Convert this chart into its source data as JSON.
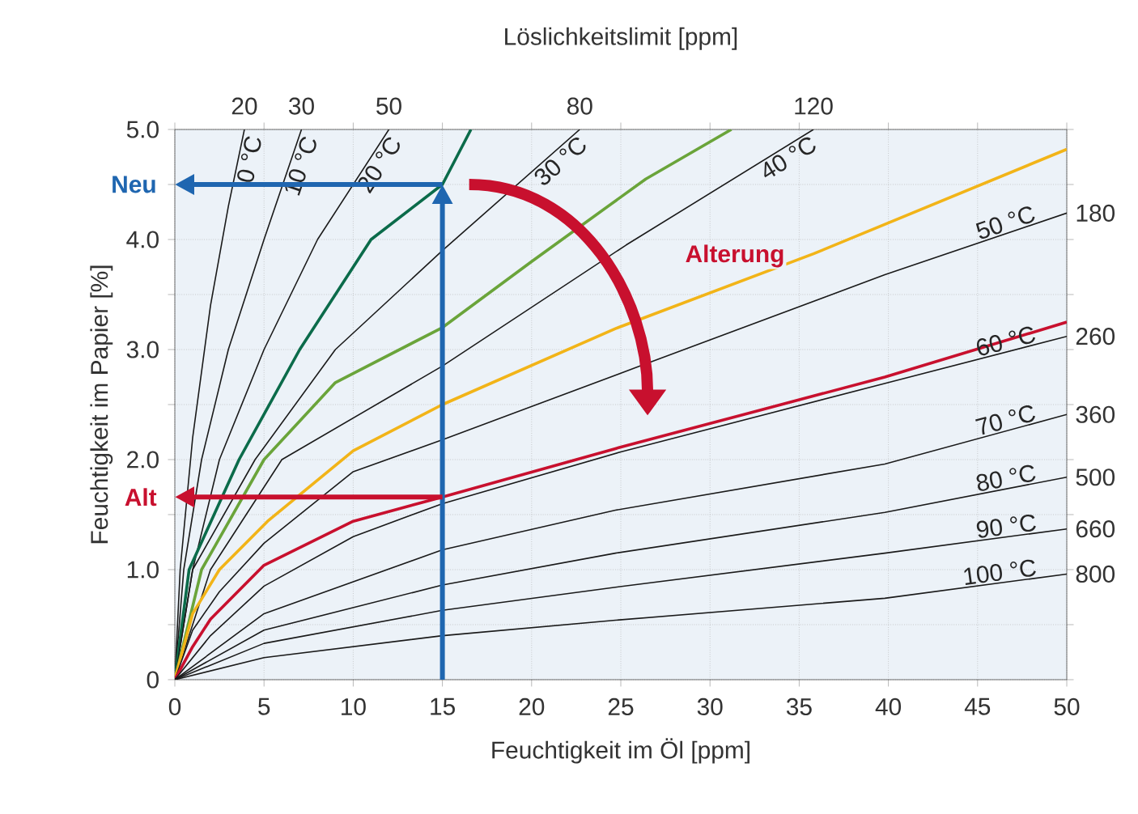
{
  "chart_data": {
    "type": "line",
    "title": "Löslichkeitslimit [ppm]",
    "xlabel": "Feuchtigkeit im Öl [ppm]",
    "ylabel": "Feuchtigkeit im Papier [%]",
    "xlim": [
      0,
      50
    ],
    "ylim": [
      0,
      5
    ],
    "xticks": [
      0,
      5,
      10,
      15,
      20,
      25,
      30,
      35,
      40,
      45,
      50
    ],
    "yticks": [
      0,
      {
        "value": 0.5,
        "label": null
      },
      {
        "value": 1,
        "label": "1.0"
      },
      {
        "value": 1.5,
        "label": null
      },
      {
        "value": 2,
        "label": "2.0"
      },
      {
        "value": 2.5,
        "label": null
      },
      {
        "value": 3,
        "label": "3.0"
      },
      {
        "value": 3.5,
        "label": null
      },
      {
        "value": 4,
        "label": "4.0"
      },
      {
        "value": 4.5,
        "label": null
      },
      {
        "value": 5,
        "label": "5.0"
      }
    ],
    "grid": true,
    "legend": false,
    "marker": "none",
    "line_style": "solid",
    "ref_lines": [
      {
        "axis": "x",
        "value": 15,
        "color": "#1f66b0"
      },
      {
        "axis": "y",
        "value": 4.5,
        "label": "Neu",
        "color": "#1f66b0"
      },
      {
        "axis": "y",
        "value": 1.66,
        "label": "Alt",
        "color": "#c8102e"
      }
    ],
    "series": [
      {
        "name": "0 °C",
        "color": "#1a1a1a",
        "x": [
          0,
          0.3,
          1,
          2,
          3,
          3.9
        ],
        "values": [
          0,
          1,
          2.2,
          3.4,
          4.3,
          5
        ]
      },
      {
        "name": "10 °C",
        "color": "#1a1a1a",
        "x": [
          0,
          0.5,
          1.5,
          3,
          5,
          7.1
        ],
        "values": [
          0,
          1,
          2,
          3,
          4,
          5
        ]
      },
      {
        "name": "20 °C",
        "color": "#1a1a1a",
        "x": [
          0,
          1,
          2.5,
          5,
          8,
          12
        ],
        "values": [
          0,
          1,
          2,
          3,
          4,
          5
        ]
      },
      {
        "color": "#0b6b4a",
        "x": [
          0,
          0.8,
          3.6,
          7,
          11,
          15,
          16.6
        ],
        "values": [
          0,
          1,
          2,
          3,
          4,
          4.5,
          5
        ]
      },
      {
        "name": "30 °C",
        "color": "#1a1a1a",
        "x": [
          0,
          1,
          4.5,
          9,
          15,
          22.7
        ],
        "values": [
          0,
          1,
          2,
          3,
          3.9,
          5
        ]
      },
      {
        "color": "#6aa43a",
        "x": [
          0,
          1.5,
          5,
          9,
          15,
          20,
          26.4,
          31.2
        ],
        "values": [
          0,
          1,
          2,
          2.7,
          3.2,
          3.8,
          4.55,
          5
        ]
      },
      {
        "name": "40 °C",
        "color": "#1a1a1a",
        "x": [
          0,
          2,
          6,
          15,
          25.3,
          35.8
        ],
        "values": [
          0,
          1,
          2,
          2.85,
          3.95,
          5
        ]
      },
      {
        "color": "#f2b418",
        "x": [
          0,
          1,
          2.5,
          5.2,
          10,
          15,
          24.7,
          35.8,
          50
        ],
        "values": [
          0,
          0.6,
          1,
          1.44,
          2.08,
          2.5,
          3.19,
          3.87,
          4.82
        ]
      },
      {
        "name": "50 °C",
        "color": "#1a1a1a",
        "x": [
          0,
          1,
          2.5,
          5,
          10,
          15,
          25.9,
          39.8,
          50
        ],
        "values": [
          0,
          0.45,
          0.8,
          1.24,
          1.89,
          2.18,
          2.84,
          3.68,
          4.24
        ]
      },
      {
        "color": "#c8102e",
        "x": [
          0,
          1,
          2,
          5,
          10,
          15,
          24.7,
          39.8,
          50
        ],
        "values": [
          0,
          0.3,
          0.55,
          1.04,
          1.44,
          1.66,
          2.1,
          2.75,
          3.25
        ]
      },
      {
        "name": "60 °C",
        "color": "#1a1a1a",
        "x": [
          0,
          2,
          5,
          10,
          15,
          25,
          40,
          50
        ],
        "values": [
          0,
          0.4,
          0.85,
          1.3,
          1.6,
          2.07,
          2.7,
          3.12
        ]
      },
      {
        "name": "70 °C",
        "color": "#1a1a1a",
        "x": [
          0,
          5,
          15,
          24.7,
          39.8,
          50
        ],
        "values": [
          0,
          0.6,
          1.18,
          1.54,
          1.96,
          2.41
        ]
      },
      {
        "name": "80 °C",
        "color": "#1a1a1a",
        "x": [
          0,
          5,
          15,
          24.7,
          39.8,
          50
        ],
        "values": [
          0,
          0.45,
          0.86,
          1.15,
          1.52,
          1.84
        ]
      },
      {
        "name": "90 °C",
        "color": "#1a1a1a",
        "x": [
          0,
          5,
          15,
          24.7,
          39.8,
          50
        ],
        "values": [
          0,
          0.33,
          0.63,
          0.84,
          1.15,
          1.37
        ]
      },
      {
        "name": "100 °C",
        "color": "#1a1a1a",
        "x": [
          0,
          5,
          15,
          24.7,
          39.8,
          50
        ],
        "values": [
          0,
          0.2,
          0.4,
          0.54,
          0.74,
          0.96
        ]
      }
    ],
    "annotations": [
      "Alterung",
      {
        "text": "20",
        "x": 3.9,
        "y": 5
      },
      {
        "text": "30",
        "x": 7.1,
        "y": 5
      },
      {
        "text": "50",
        "x": 12,
        "y": 5
      },
      {
        "text": "80",
        "x": 22.7,
        "y": 5
      },
      {
        "text": "120",
        "x": 35.8,
        "y": 5
      },
      {
        "text": "180",
        "x": 50,
        "y": 4.24
      },
      {
        "text": "260",
        "x": 50,
        "y": 3.12
      },
      {
        "text": "360",
        "x": 50,
        "y": 2.41
      },
      {
        "text": "500",
        "x": 50,
        "y": 1.84
      },
      {
        "text": "660",
        "x": 50,
        "y": 1.37
      },
      {
        "text": "800",
        "x": 50,
        "y": 0.96
      }
    ]
  }
}
